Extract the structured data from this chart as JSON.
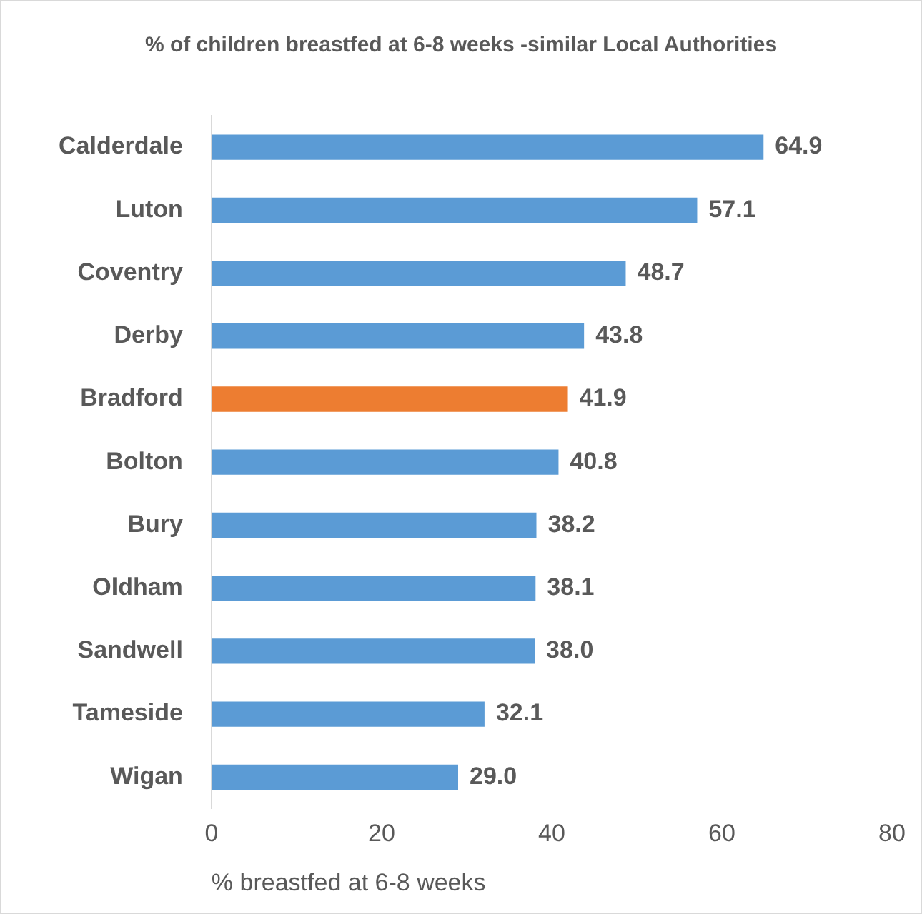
{
  "chart_data": {
    "type": "bar",
    "orientation": "horizontal",
    "title": "% of children breastfed at 6-8 weeks -similar Local Authorities",
    "xlabel": "% breastfed at 6-8 weeks",
    "categories": [
      "Calderdale",
      "Luton",
      "Coventry",
      "Derby",
      "Bradford",
      "Bolton",
      "Bury",
      "Oldham",
      "Sandwell",
      "Tameside",
      "Wigan"
    ],
    "values": [
      64.9,
      57.1,
      48.7,
      43.8,
      41.9,
      40.8,
      38.2,
      38.1,
      38.0,
      32.1,
      29.0
    ],
    "colors": [
      "#5b9bd5",
      "#5b9bd5",
      "#5b9bd5",
      "#5b9bd5",
      "#ed7d31",
      "#5b9bd5",
      "#5b9bd5",
      "#5b9bd5",
      "#5b9bd5",
      "#5b9bd5",
      "#5b9bd5"
    ],
    "value_labels": [
      "64.9",
      "57.1",
      "48.7",
      "43.8",
      "41.9",
      "40.8",
      "38.2",
      "38.1",
      "38.0",
      "32.1",
      "29.0"
    ],
    "xlim": [
      0,
      80
    ],
    "xticks": [
      0,
      20,
      40,
      60,
      80
    ],
    "grid": false,
    "legend": false
  }
}
